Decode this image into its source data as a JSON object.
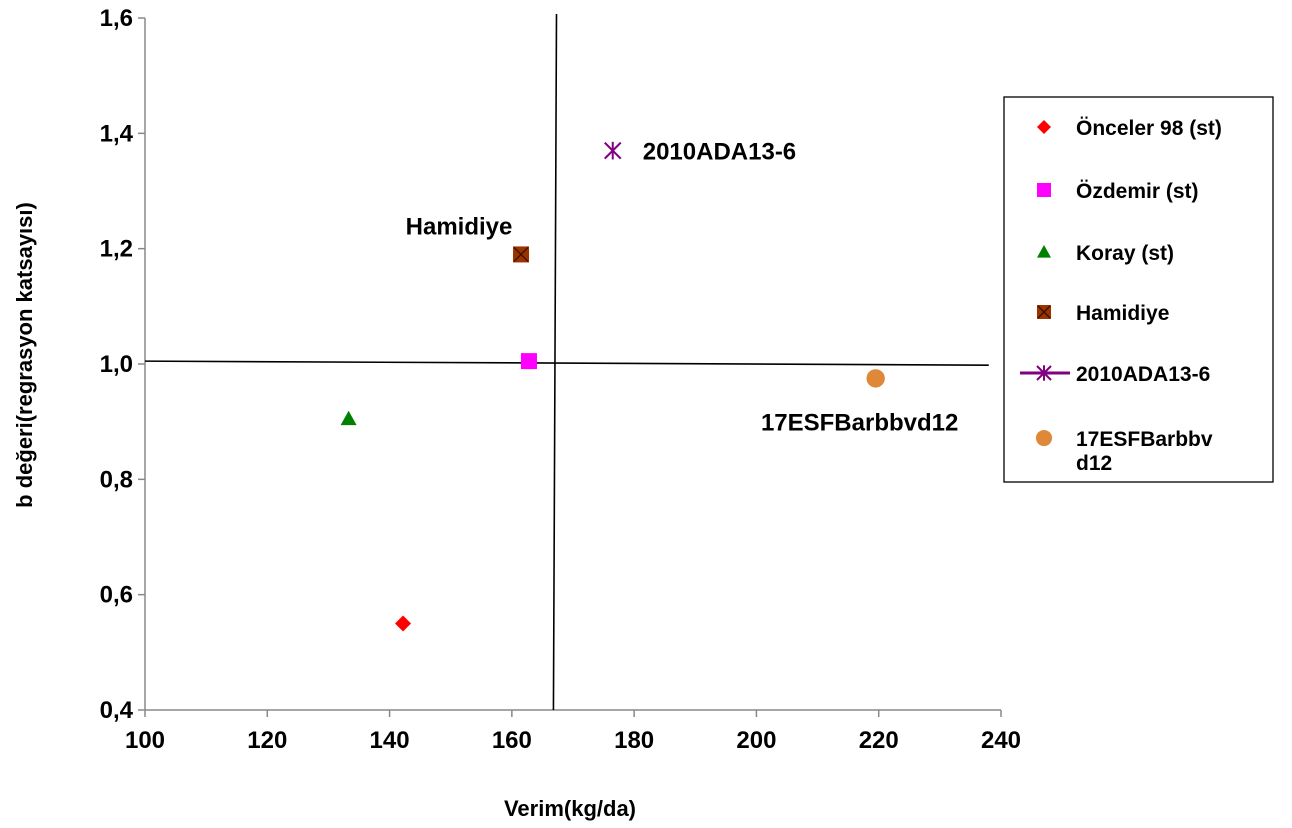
{
  "chart_data": {
    "type": "scatter",
    "xlabel": "Verim(kg/da)",
    "ylabel": "b değeri(regrasyon katsayısı)",
    "xlim": [
      100,
      240
    ],
    "ylim": [
      0.4,
      1.6
    ],
    "x_ticks": [
      "100",
      "120",
      "140",
      "160",
      "180",
      "200",
      "220",
      "240"
    ],
    "y_ticks": [
      "0,4",
      "0,6",
      "0,8",
      "1,0",
      "1,2",
      "1,4",
      "1,6"
    ],
    "grid": false,
    "legend_position": "right",
    "reference_lines": {
      "vertical": {
        "from": [
          167.3,
          1.6
        ],
        "to": [
          166.8,
          0.4
        ]
      },
      "horizontal": {
        "from": [
          100,
          1.005
        ],
        "to": [
          238,
          0.998
        ]
      }
    },
    "series": [
      {
        "name": "Önceler 98 (st)",
        "marker": "diamond",
        "color": "#ff0000",
        "x": 142.2,
        "y": 0.55
      },
      {
        "name": "Özdemir (st)",
        "marker": "square",
        "color": "#ff00ff",
        "x": 162.8,
        "y": 1.005
      },
      {
        "name": "Koray (st)",
        "marker": "triangle",
        "color": "#008000",
        "x": 133.3,
        "y": 0.905
      },
      {
        "name": "Hamidiye",
        "marker": "x-square",
        "color": "#993300",
        "x": 161.5,
        "y": 1.19,
        "annotation": "Hamidiye"
      },
      {
        "name": "2010ADA13-6",
        "marker": "star",
        "color": "#800080",
        "x": 176.5,
        "y": 1.37,
        "annotation": "2010ADA13-6"
      },
      {
        "name": "17ESFBarbbvd12",
        "legend_lines": [
          "17ESFBarbbv",
          "d12"
        ],
        "marker": "circle",
        "color": "#e0883a",
        "x": 219.5,
        "y": 0.975,
        "annotation": "17ESFBarbbvd12"
      }
    ]
  }
}
